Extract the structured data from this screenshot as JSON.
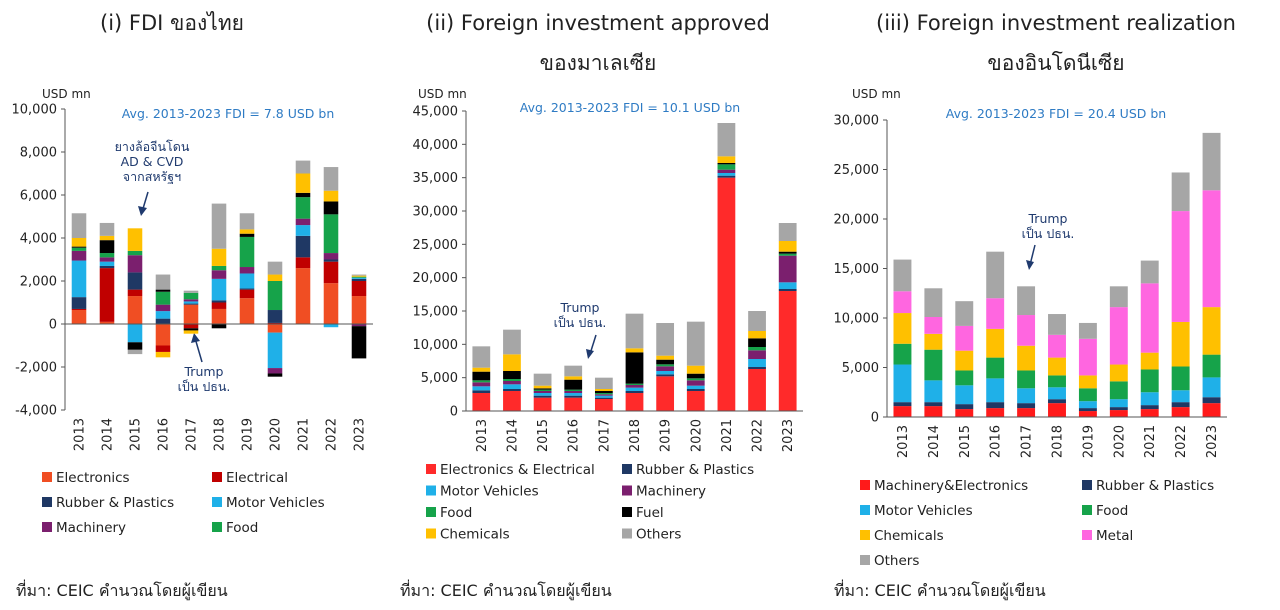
{
  "chart_data": [
    {
      "type": "bar",
      "stacked": true,
      "title": "(i)  FDI ของไทย",
      "ylabel": "USD mn",
      "ylim": [
        -4000,
        10000
      ],
      "yticks": [
        -4000,
        -2000,
        0,
        2000,
        4000,
        6000,
        8000,
        10000
      ],
      "ytick_labels": [
        "-4,000",
        "-2,000",
        "0",
        "2,000",
        "4,000",
        "6,000",
        "8,000",
        "10,000"
      ],
      "categories": [
        "2013",
        "2014",
        "2015",
        "2016",
        "2017",
        "2018",
        "2019",
        "2020",
        "2021",
        "2022",
        "2023"
      ],
      "series": [
        {
          "name": "Electronics",
          "color": "#f04e23",
          "values": [
            650,
            100,
            1300,
            -1000,
            900,
            700,
            1200,
            -400,
            2600,
            1900,
            1300
          ]
        },
        {
          "name": "Electrical",
          "color": "#c00000",
          "values": [
            50,
            2500,
            300,
            -300,
            -200,
            300,
            400,
            50,
            500,
            1000,
            700
          ]
        },
        {
          "name": "Rubber & Plastics",
          "color": "#1f3864",
          "values": [
            550,
            100,
            800,
            250,
            50,
            100,
            50,
            600,
            1000,
            100,
            100
          ]
        },
        {
          "name": "Motor Vehicles",
          "color": "#1fb0e8",
          "values": [
            1700,
            200,
            -850,
            350,
            100,
            1000,
            700,
            -1650,
            500,
            -150,
            50
          ]
        },
        {
          "name": "Machinery",
          "color": "#7b1f6e",
          "values": [
            450,
            200,
            800,
            300,
            100,
            400,
            300,
            -250,
            300,
            300,
            -100
          ]
        },
        {
          "name": "Food",
          "color": "#16a34a",
          "values": [
            150,
            200,
            200,
            600,
            300,
            200,
            1400,
            1350,
            1000,
            1800,
            50
          ]
        },
        {
          "name": "Fuel",
          "color": "#000000",
          "values": [
            50,
            600,
            -350,
            100,
            -100,
            -200,
            150,
            -150,
            200,
            600,
            -1500
          ]
        },
        {
          "name": "Chemicals",
          "color": "#ffc000",
          "values": [
            400,
            200,
            1050,
            -250,
            -150,
            800,
            200,
            300,
            900,
            500,
            50
          ]
        },
        {
          "name": "Others",
          "color": "#a6a6a6",
          "values": [
            1150,
            600,
            -200,
            700,
            100,
            2100,
            750,
            600,
            600,
            1100,
            50
          ]
        }
      ],
      "legend": [
        "Electronics",
        "Electrical",
        "Rubber & Plastics",
        "Motor Vehicles",
        "Machinery",
        "Food"
      ],
      "annotations": [
        {
          "text": "Avg. 2013-2023 FDI = 7.8 USD bn"
        },
        {
          "lines": [
            "ยางล้อจีนโดน",
            "AD & CVD",
            "จากสหรัฐฯ"
          ]
        },
        {
          "lines": [
            "Trump",
            "เป็น ปธน."
          ]
        }
      ],
      "source": "ที่มา: CEIC คำนวณโดยผู้เขียน"
    },
    {
      "type": "bar",
      "stacked": true,
      "title_lines": [
        "(ii) Foreign investment approved",
        "ของมาเลเซีย"
      ],
      "ylabel": "USD mn",
      "ylim": [
        0,
        45000
      ],
      "yticks": [
        0,
        5000,
        10000,
        15000,
        20000,
        25000,
        30000,
        35000,
        40000,
        45000
      ],
      "ytick_labels": [
        "0",
        "5,000",
        "10,000",
        "15,000",
        "20,000",
        "25,000",
        "30,000",
        "35,000",
        "40,000",
        "45,000"
      ],
      "categories": [
        "2013",
        "2014",
        "2015",
        "2016",
        "2017",
        "2018",
        "2019",
        "2020",
        "2021",
        "2022",
        "2023"
      ],
      "series": [
        {
          "name": "Electronics & Electrical",
          "color": "#ff2a2a",
          "values": [
            2700,
            3000,
            2000,
            2000,
            1800,
            2700,
            5200,
            3000,
            35000,
            6300,
            18000
          ]
        },
        {
          "name": "Rubber & Plastics",
          "color": "#1f3864",
          "values": [
            400,
            300,
            300,
            300,
            200,
            300,
            300,
            300,
            300,
            300,
            300
          ]
        },
        {
          "name": "Motor Vehicles",
          "color": "#1fb0e8",
          "values": [
            600,
            700,
            400,
            400,
            300,
            500,
            500,
            500,
            400,
            1200,
            1000
          ]
        },
        {
          "name": "Machinery",
          "color": "#7b1f6e",
          "values": [
            600,
            500,
            300,
            300,
            200,
            400,
            700,
            800,
            500,
            1300,
            4000
          ]
        },
        {
          "name": "Food",
          "color": "#16a34a",
          "values": [
            300,
            300,
            200,
            200,
            200,
            200,
            300,
            300,
            800,
            500,
            300
          ]
        },
        {
          "name": "Fuel",
          "color": "#000000",
          "values": [
            1300,
            1200,
            200,
            1500,
            300,
            4700,
            700,
            700,
            200,
            1300,
            300
          ]
        },
        {
          "name": "Chemicals",
          "color": "#ffc000",
          "values": [
            600,
            2500,
            400,
            500,
            300,
            600,
            600,
            1200,
            1000,
            1100,
            1600
          ]
        },
        {
          "name": "Others",
          "color": "#a6a6a6",
          "values": [
            3200,
            3700,
            1800,
            1600,
            1700,
            5200,
            4900,
            6600,
            5000,
            3000,
            2700
          ]
        }
      ],
      "legend": [
        "Electronics & Electrical",
        "Rubber & Plastics",
        "Motor Vehicles",
        "Machinery",
        "Food",
        "Fuel",
        "Chemicals",
        "Others"
      ],
      "annotations": [
        {
          "text": "Avg. 2013-2023 FDI = 10.1 USD bn"
        },
        {
          "lines": [
            "Trump",
            "เป็น ปธน."
          ]
        }
      ],
      "source": "ที่มา: CEIC คำนวณโดยผู้เขียน"
    },
    {
      "type": "bar",
      "stacked": true,
      "title_lines": [
        "(iii) Foreign investment realization",
        "ของอินโดนีเซีย"
      ],
      "ylabel": "USD mn",
      "ylim": [
        0,
        30000
      ],
      "yticks": [
        0,
        5000,
        10000,
        15000,
        20000,
        25000,
        30000
      ],
      "ytick_labels": [
        "0",
        "5,000",
        "10,000",
        "15,000",
        "20,000",
        "25,000",
        "30,000"
      ],
      "categories": [
        "2013",
        "2014",
        "2015",
        "2016",
        "2017",
        "2018",
        "2019",
        "2020",
        "2021",
        "2022",
        "2023"
      ],
      "series": [
        {
          "name": "Machinery&Electronics",
          "color": "#ff1a1a",
          "values": [
            1100,
            1100,
            800,
            900,
            900,
            1400,
            600,
            700,
            800,
            1000,
            1400
          ]
        },
        {
          "name": "Rubber & Plastics",
          "color": "#1f3864",
          "values": [
            400,
            400,
            500,
            600,
            500,
            400,
            300,
            300,
            400,
            500,
            600
          ]
        },
        {
          "name": "Motor Vehicles",
          "color": "#1fb0e8",
          "values": [
            3800,
            2200,
            1900,
            2400,
            1500,
            1200,
            700,
            800,
            1300,
            1200,
            2000
          ]
        },
        {
          "name": "Food",
          "color": "#16a34a",
          "values": [
            2100,
            3100,
            1500,
            2100,
            1800,
            1200,
            1300,
            1800,
            2300,
            2400,
            2300
          ]
        },
        {
          "name": "Chemicals",
          "color": "#ffc000",
          "values": [
            3100,
            1600,
            2000,
            2900,
            2500,
            1800,
            1300,
            1700,
            1700,
            4500,
            4800
          ]
        },
        {
          "name": "Metal",
          "color": "#ff66e0",
          "values": [
            2200,
            1700,
            2500,
            3100,
            3100,
            2300,
            3700,
            5800,
            7000,
            11200,
            11800
          ]
        },
        {
          "name": "Others",
          "color": "#a6a6a6",
          "values": [
            3200,
            2900,
            2500,
            4700,
            2900,
            2100,
            1600,
            2100,
            2300,
            3900,
            5800
          ]
        }
      ],
      "legend": [
        "Machinery&Electronics",
        "Rubber & Plastics",
        "Motor Vehicles",
        "Food",
        "Chemicals",
        "Metal",
        "Others"
      ],
      "annotations": [
        {
          "text": "Avg. 2013-2023 FDI = 20.4 USD bn"
        },
        {
          "lines": [
            "Trump",
            "เป็น ปธน."
          ]
        }
      ],
      "source": "ที่มา: CEIC คำนวณโดยผู้เขียน"
    }
  ]
}
